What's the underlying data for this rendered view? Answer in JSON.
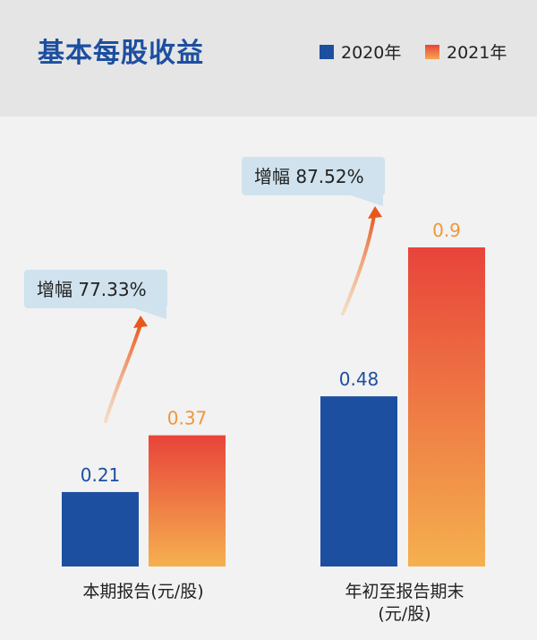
{
  "title": "基本每股收益",
  "legend": [
    {
      "label": "2020年",
      "color": "#1d4fa0"
    },
    {
      "label": "2021年",
      "color": "#f08a3e"
    }
  ],
  "chart_data": {
    "type": "bar",
    "title": "基本每股收益",
    "categories": [
      "本期报告(元/股)",
      "年初至报告期末(元/股)"
    ],
    "category_lines": [
      [
        "本期报告(元/股)"
      ],
      [
        "年初至报告期末",
        "(元/股)"
      ]
    ],
    "series": [
      {
        "name": "2020年",
        "values": [
          0.21,
          0.48
        ],
        "color": "#1d4fa0",
        "label_color": "#1d4fa0"
      },
      {
        "name": "2021年",
        "values": [
          0.37,
          0.9
        ],
        "color_top": "#e8443a",
        "color_bottom": "#f5b04f",
        "label_color": "#f0963c"
      }
    ],
    "value_labels": [
      [
        "0.21",
        "0.48"
      ],
      [
        "0.37",
        "0.9"
      ]
    ],
    "annotations": [
      "增幅 77.33%",
      "增幅 87.52%"
    ],
    "ylim": [
      0,
      0.9
    ],
    "grid": false,
    "legend_position": "top-right"
  }
}
